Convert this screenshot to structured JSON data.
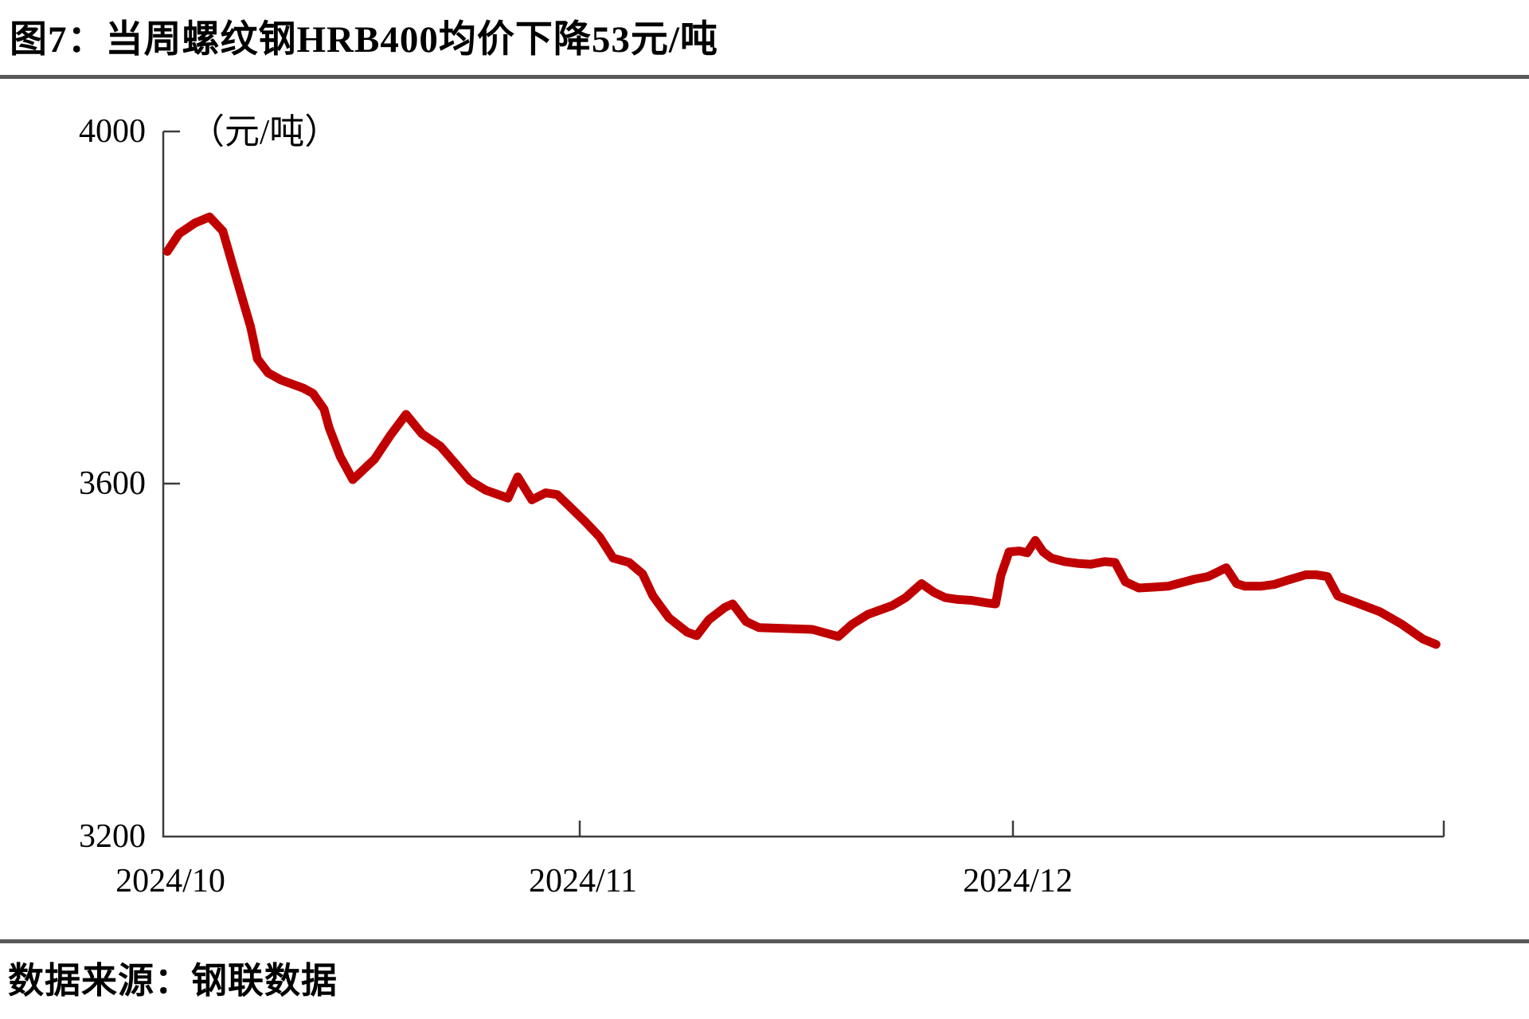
{
  "figure": {
    "title": "图7：当周螺纹钢HRB400均价下降53元/吨",
    "source": "数据来源：钢联数据"
  },
  "chart_data": {
    "type": "line",
    "title": "图7：当周螺纹钢HRB400均价下降53元/吨",
    "unit_label": "（元/吨）",
    "xlabel": "",
    "ylabel": "元/吨",
    "ylim": [
      3200,
      4000
    ],
    "yticks": [
      4000,
      3600,
      3200
    ],
    "xticks": [
      "2024/10",
      "2024/11",
      "2024/12"
    ],
    "grid": false,
    "legend": "none",
    "line_color": "#C00000",
    "series": [
      {
        "color": "#C00000",
        "x_unit": "months-from-2024-10",
        "points": [
          [
            0.01,
            3864
          ],
          [
            0.038,
            3884
          ],
          [
            0.076,
            3896
          ],
          [
            0.111,
            3903
          ],
          [
            0.143,
            3887
          ],
          [
            0.187,
            3815
          ],
          [
            0.21,
            3778
          ],
          [
            0.226,
            3742
          ],
          [
            0.252,
            3726
          ],
          [
            0.283,
            3718
          ],
          [
            0.335,
            3709
          ],
          [
            0.359,
            3703
          ],
          [
            0.386,
            3685
          ],
          [
            0.398,
            3664
          ],
          [
            0.425,
            3631
          ],
          [
            0.455,
            3605
          ],
          [
            0.507,
            3628
          ],
          [
            0.545,
            3655
          ],
          [
            0.583,
            3679
          ],
          [
            0.621,
            3657
          ],
          [
            0.665,
            3643
          ],
          [
            0.702,
            3623
          ],
          [
            0.736,
            3604
          ],
          [
            0.774,
            3593
          ],
          [
            0.828,
            3584
          ],
          [
            0.851,
            3608
          ],
          [
            0.885,
            3582
          ],
          [
            0.918,
            3590
          ],
          [
            0.946,
            3588
          ],
          [
            0.979,
            3573
          ],
          [
            1.013,
            3557
          ],
          [
            1.046,
            3540
          ],
          [
            1.077,
            3516
          ],
          [
            1.114,
            3511
          ],
          [
            1.145,
            3498
          ],
          [
            1.169,
            3473
          ],
          [
            1.206,
            3448
          ],
          [
            1.248,
            3432
          ],
          [
            1.27,
            3428
          ],
          [
            1.298,
            3446
          ],
          [
            1.335,
            3460
          ],
          [
            1.353,
            3464
          ],
          [
            1.384,
            3444
          ],
          [
            1.414,
            3437
          ],
          [
            1.476,
            3436
          ],
          [
            1.537,
            3435
          ],
          [
            1.597,
            3427
          ],
          [
            1.629,
            3441
          ],
          [
            1.665,
            3452
          ],
          [
            1.721,
            3462
          ],
          [
            1.752,
            3471
          ],
          [
            1.789,
            3487
          ],
          [
            1.818,
            3477
          ],
          [
            1.844,
            3471
          ],
          [
            1.873,
            3469
          ],
          [
            1.904,
            3468
          ],
          [
            1.941,
            3465
          ],
          [
            1.96,
            3464
          ],
          [
            1.972,
            3496
          ],
          [
            1.991,
            3523
          ],
          [
            2.015,
            3524
          ],
          [
            2.033,
            3522
          ],
          [
            2.052,
            3536
          ],
          [
            2.07,
            3523
          ],
          [
            2.089,
            3516
          ],
          [
            2.12,
            3512
          ],
          [
            2.15,
            3510
          ],
          [
            2.181,
            3509
          ],
          [
            2.213,
            3512
          ],
          [
            2.237,
            3511
          ],
          [
            2.261,
            3489
          ],
          [
            2.292,
            3482
          ],
          [
            2.329,
            3483
          ],
          [
            2.36,
            3484
          ],
          [
            2.421,
            3492
          ],
          [
            2.453,
            3495
          ],
          [
            2.495,
            3505
          ],
          [
            2.519,
            3487
          ],
          [
            2.538,
            3484
          ],
          [
            2.575,
            3484
          ],
          [
            2.606,
            3486
          ],
          [
            2.638,
            3491
          ],
          [
            2.68,
            3497
          ],
          [
            2.704,
            3497
          ],
          [
            2.73,
            3495
          ],
          [
            2.754,
            3473
          ],
          [
            2.804,
            3464
          ],
          [
            2.852,
            3455
          ],
          [
            2.902,
            3441
          ],
          [
            2.952,
            3424
          ],
          [
            2.982,
            3418
          ]
        ]
      }
    ]
  },
  "colors": {
    "line": "#C00000",
    "separator": "#595959",
    "axis": "#3d3d3d",
    "text": "#000000"
  }
}
